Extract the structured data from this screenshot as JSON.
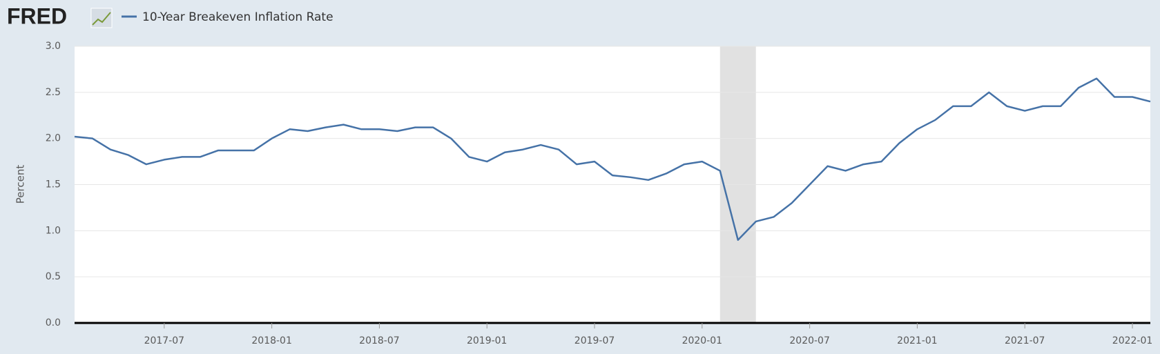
{
  "header": {
    "logo": "FRED"
  },
  "chart_data": {
    "type": "line",
    "y_label": "Percent",
    "x": [
      "2017-02",
      "2017-03",
      "2017-04",
      "2017-05",
      "2017-06",
      "2017-07",
      "2017-08",
      "2017-09",
      "2017-10",
      "2017-11",
      "2017-12",
      "2018-01",
      "2018-02",
      "2018-03",
      "2018-04",
      "2018-05",
      "2018-06",
      "2018-07",
      "2018-08",
      "2018-09",
      "2018-10",
      "2018-11",
      "2018-12",
      "2019-01",
      "2019-02",
      "2019-03",
      "2019-04",
      "2019-05",
      "2019-06",
      "2019-07",
      "2019-08",
      "2019-09",
      "2019-10",
      "2019-11",
      "2019-12",
      "2020-01",
      "2020-02",
      "2020-03",
      "2020-04",
      "2020-05",
      "2020-06",
      "2020-07",
      "2020-08",
      "2020-09",
      "2020-10",
      "2020-11",
      "2020-12",
      "2021-01",
      "2021-02",
      "2021-03",
      "2021-04",
      "2021-05",
      "2021-06",
      "2021-07",
      "2021-08",
      "2021-09",
      "2021-10",
      "2021-11",
      "2021-12",
      "2022-01",
      "2022-02"
    ],
    "series": [
      {
        "name": "10-Year Breakeven Inflation Rate",
        "color": "#4572a7",
        "values": [
          2.02,
          2.0,
          1.88,
          1.82,
          1.72,
          1.77,
          1.8,
          1.8,
          1.87,
          1.87,
          1.87,
          2.0,
          2.1,
          2.08,
          2.12,
          2.15,
          2.1,
          2.1,
          2.08,
          2.12,
          2.12,
          2.0,
          1.8,
          1.75,
          1.85,
          1.88,
          1.93,
          1.88,
          1.72,
          1.75,
          1.6,
          1.58,
          1.55,
          1.62,
          1.72,
          1.75,
          1.65,
          0.9,
          1.1,
          1.15,
          1.3,
          1.5,
          1.7,
          1.65,
          1.72,
          1.75,
          1.95,
          2.1,
          2.2,
          2.35,
          2.35,
          2.5,
          2.35,
          2.3,
          2.35,
          2.35,
          2.55,
          2.65,
          2.45,
          2.45,
          2.4
        ]
      }
    ],
    "recession_shading": {
      "start": "2020-02",
      "end": "2020-04"
    },
    "xlim": [
      "2017-02",
      "2022-02"
    ],
    "xticks": [
      "2017-07",
      "2018-01",
      "2018-07",
      "2019-01",
      "2019-07",
      "2020-01",
      "2020-07",
      "2021-01",
      "2021-07",
      "2022-01"
    ],
    "ylim": [
      0,
      3
    ],
    "yticks": [
      {
        "value": 0,
        "label": "0.0"
      },
      0.5,
      {
        "value": 1,
        "label": "1.0"
      },
      1.5,
      {
        "value": 2,
        "label": "2.0"
      },
      2.5,
      {
        "value": 3,
        "label": "3.0"
      }
    ],
    "grid": true
  }
}
